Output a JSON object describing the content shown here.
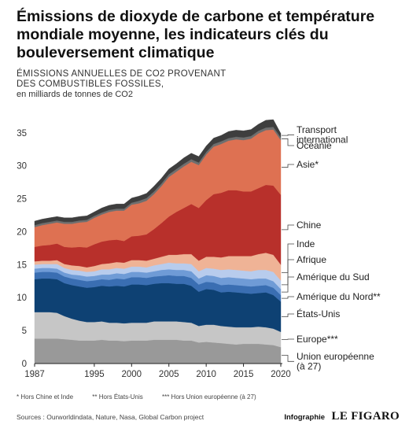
{
  "header": {
    "title": "Émissions de dioxyde de carbone et température mondiale moyenne, les indicateurs clés du bouleversement climatique",
    "subtitle_line1": "ÉMISSIONS ANNUELLES DE CO2 PROVENANT",
    "subtitle_line2": "DES COMBUSTIBLES FOSSILES,",
    "unit": "en milliards de tonnes de CO2"
  },
  "footer": {
    "note1": "* Hors Chine et Inde",
    "note2": "** Hors États-Unis",
    "note3": "*** Hors Union européenne (à 27)",
    "sources": "Sources : Ourworldindata, Nature, Nasa, Global Carbon project",
    "credit_label": "Infographie",
    "credit_brand": "LE FIGARO"
  },
  "chart_data": {
    "type": "area",
    "stacked": true,
    "title": "ÉMISSIONS ANNUELLES DE CO2 PROVENANT DES COMBUSTIBLES FOSSILES,",
    "ylabel": "en milliards de tonnes de CO2",
    "xlim": [
      1987,
      2020
    ],
    "ylim": [
      0,
      37
    ],
    "yticks": [
      0,
      5,
      10,
      15,
      20,
      25,
      30,
      35
    ],
    "xticks": [
      1987,
      1995,
      2000,
      2005,
      2010,
      2015,
      2020
    ],
    "x": [
      1987,
      1988,
      1989,
      1990,
      1991,
      1992,
      1993,
      1994,
      1995,
      1996,
      1997,
      1998,
      1999,
      2000,
      2001,
      2002,
      2003,
      2004,
      2005,
      2006,
      2007,
      2008,
      2009,
      2010,
      2011,
      2012,
      2013,
      2014,
      2015,
      2016,
      2017,
      2018,
      2019,
      2020
    ],
    "series": [
      {
        "name": "Union européenne (à 27)",
        "color": "#999999",
        "values": [
          3.8,
          3.8,
          3.8,
          3.8,
          3.7,
          3.6,
          3.5,
          3.5,
          3.5,
          3.6,
          3.5,
          3.5,
          3.4,
          3.5,
          3.5,
          3.5,
          3.6,
          3.6,
          3.6,
          3.6,
          3.5,
          3.5,
          3.2,
          3.3,
          3.2,
          3.1,
          3.0,
          2.9,
          3.0,
          3.0,
          3.0,
          2.9,
          2.8,
          2.5
        ]
      },
      {
        "name": "Europe***",
        "color": "#c6c6c6",
        "values": [
          4.0,
          4.0,
          4.0,
          3.9,
          3.5,
          3.2,
          3.0,
          2.8,
          2.8,
          2.8,
          2.7,
          2.7,
          2.7,
          2.7,
          2.7,
          2.7,
          2.8,
          2.8,
          2.8,
          2.8,
          2.8,
          2.7,
          2.5,
          2.6,
          2.7,
          2.6,
          2.6,
          2.6,
          2.5,
          2.5,
          2.6,
          2.6,
          2.5,
          2.3
        ]
      },
      {
        "name": "États-Unis",
        "color": "#0e4173",
        "values": [
          5.0,
          5.1,
          5.1,
          5.1,
          5.0,
          5.1,
          5.2,
          5.2,
          5.3,
          5.4,
          5.5,
          5.6,
          5.6,
          5.8,
          5.8,
          5.7,
          5.7,
          5.8,
          5.8,
          5.7,
          5.8,
          5.6,
          5.2,
          5.4,
          5.3,
          5.1,
          5.3,
          5.3,
          5.2,
          5.1,
          5.1,
          5.3,
          5.1,
          4.6
        ]
      },
      {
        "name": "Amérique du Nord**",
        "color": "#3a6eb2",
        "values": [
          1.0,
          1.0,
          1.0,
          1.0,
          1.0,
          1.0,
          1.0,
          1.0,
          1.0,
          1.0,
          1.0,
          1.1,
          1.1,
          1.1,
          1.1,
          1.1,
          1.1,
          1.1,
          1.2,
          1.2,
          1.2,
          1.2,
          1.1,
          1.1,
          1.1,
          1.1,
          1.1,
          1.1,
          1.1,
          1.1,
          1.1,
          1.1,
          1.1,
          1.0
        ]
      },
      {
        "name": "Amérique du Sud",
        "color": "#6f9bd6",
        "values": [
          0.6,
          0.6,
          0.6,
          0.6,
          0.6,
          0.6,
          0.7,
          0.7,
          0.7,
          0.7,
          0.8,
          0.8,
          0.8,
          0.8,
          0.8,
          0.8,
          0.8,
          0.9,
          0.9,
          0.9,
          0.9,
          1.0,
          0.9,
          1.0,
          1.0,
          1.1,
          1.1,
          1.1,
          1.1,
          1.1,
          1.1,
          1.0,
          1.0,
          0.9
        ]
      },
      {
        "name": "Afrique",
        "color": "#b8cced",
        "values": [
          0.6,
          0.6,
          0.6,
          0.7,
          0.7,
          0.7,
          0.7,
          0.7,
          0.7,
          0.8,
          0.8,
          0.8,
          0.8,
          0.8,
          0.8,
          0.8,
          0.9,
          0.9,
          1.0,
          1.0,
          1.0,
          1.1,
          1.1,
          1.1,
          1.1,
          1.2,
          1.2,
          1.2,
          1.2,
          1.2,
          1.3,
          1.3,
          1.4,
          1.3
        ]
      },
      {
        "name": "Inde",
        "color": "#efb396",
        "values": [
          0.5,
          0.5,
          0.5,
          0.6,
          0.6,
          0.7,
          0.7,
          0.7,
          0.8,
          0.8,
          0.9,
          0.9,
          0.9,
          1.0,
          1.0,
          1.0,
          1.0,
          1.1,
          1.2,
          1.3,
          1.4,
          1.5,
          1.6,
          1.7,
          1.8,
          1.9,
          2.0,
          2.1,
          2.2,
          2.3,
          2.4,
          2.6,
          2.6,
          2.4
        ]
      },
      {
        "name": "Chine",
        "color": "#b8302b",
        "values": [
          2.2,
          2.3,
          2.4,
          2.5,
          2.6,
          2.7,
          2.9,
          3.0,
          3.3,
          3.4,
          3.5,
          3.4,
          3.3,
          3.6,
          3.7,
          4.0,
          4.5,
          5.1,
          5.8,
          6.5,
          7.0,
          7.6,
          8.0,
          8.6,
          9.5,
          9.8,
          10.0,
          10.0,
          9.8,
          9.8,
          10.0,
          10.3,
          10.5,
          10.6
        ]
      },
      {
        "name": "Asie*",
        "color": "#de7152",
        "values": [
          3.0,
          3.1,
          3.2,
          3.2,
          3.5,
          3.6,
          3.7,
          3.9,
          4.0,
          4.1,
          4.3,
          4.4,
          4.6,
          4.8,
          4.9,
          5.1,
          5.3,
          5.6,
          6.0,
          6.1,
          6.3,
          6.4,
          6.5,
          6.9,
          7.2,
          7.4,
          7.5,
          7.7,
          7.8,
          8.0,
          8.3,
          8.3,
          8.5,
          8.3
        ]
      },
      {
        "name": "Océanie",
        "color": "#6e6e6e",
        "values": [
          0.3,
          0.3,
          0.3,
          0.3,
          0.3,
          0.3,
          0.3,
          0.3,
          0.3,
          0.3,
          0.3,
          0.3,
          0.3,
          0.3,
          0.4,
          0.4,
          0.4,
          0.4,
          0.4,
          0.4,
          0.4,
          0.4,
          0.4,
          0.4,
          0.4,
          0.4,
          0.4,
          0.4,
          0.4,
          0.4,
          0.4,
          0.4,
          0.4,
          0.4
        ]
      },
      {
        "name": "Transport international",
        "color": "#3e3e3e",
        "values": [
          0.6,
          0.6,
          0.6,
          0.6,
          0.6,
          0.6,
          0.6,
          0.6,
          0.6,
          0.7,
          0.7,
          0.7,
          0.7,
          0.7,
          0.7,
          0.7,
          0.8,
          0.8,
          0.8,
          0.8,
          0.9,
          0.9,
          0.9,
          0.9,
          0.9,
          0.9,
          1.0,
          1.0,
          1.0,
          1.0,
          1.0,
          1.1,
          1.1,
          0.6
        ]
      }
    ],
    "legend": {
      "placement": "right",
      "entries": [
        {
          "series": "Transport international",
          "lines": [
            "Transport",
            "international"
          ]
        },
        {
          "series": "Océanie",
          "lines": [
            "Océanie"
          ]
        },
        {
          "series": "Asie*",
          "lines": [
            "Asie*"
          ]
        },
        {
          "series": "Chine",
          "lines": [
            "Chine"
          ]
        },
        {
          "series": "Inde",
          "lines": [
            "Inde"
          ]
        },
        {
          "series": "Afrique",
          "lines": [
            "Afrique"
          ]
        },
        {
          "series": "Amérique du Sud",
          "lines": [
            "Amérique du Sud"
          ]
        },
        {
          "series": "Amérique du Nord**",
          "lines": [
            "Amérique du Nord**"
          ]
        },
        {
          "series": "États-Unis",
          "lines": [
            "États-Unis"
          ]
        },
        {
          "series": "Europe***",
          "lines": [
            "Europe***"
          ]
        },
        {
          "series": "Union européenne (à 27)",
          "lines": [
            "Union européenne",
            "(à 27)"
          ]
        }
      ]
    },
    "grid": false
  }
}
